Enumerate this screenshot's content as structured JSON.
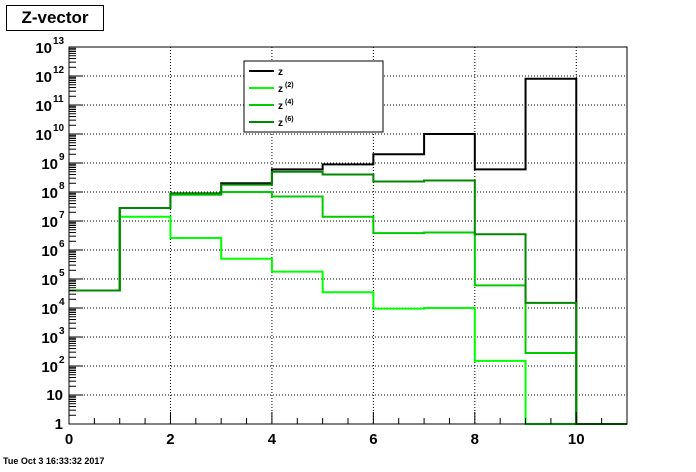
{
  "title": "Z-vector",
  "footer": "Tue Oct  3 16:33:32 2017",
  "chart_data": {
    "type": "line",
    "step_histogram": true,
    "title": "Z-vector",
    "xlabel": "",
    "ylabel": "",
    "xlim": [
      0,
      11
    ],
    "ylim": [
      1,
      10000000000000.0
    ],
    "y_scale": "log",
    "grid": true,
    "bin_edges": [
      0,
      1,
      2,
      3,
      4,
      5,
      6,
      7,
      8,
      9,
      10,
      11
    ],
    "x_ticks": [
      "0",
      "2",
      "4",
      "6",
      "8",
      "10"
    ],
    "y_ticks": [
      {
        "base": "1",
        "exp": ""
      },
      {
        "base": "10",
        "exp": ""
      },
      {
        "base": "10",
        "exp": "2"
      },
      {
        "base": "10",
        "exp": "3"
      },
      {
        "base": "10",
        "exp": "4"
      },
      {
        "base": "10",
        "exp": "5"
      },
      {
        "base": "10",
        "exp": "6"
      },
      {
        "base": "10",
        "exp": "7"
      },
      {
        "base": "10",
        "exp": "8"
      },
      {
        "base": "10",
        "exp": "9"
      },
      {
        "base": "10",
        "exp": "10"
      },
      {
        "base": "10",
        "exp": "11"
      },
      {
        "base": "10",
        "exp": "12"
      },
      {
        "base": "10",
        "exp": "13"
      }
    ],
    "legend_position": "top-center",
    "series": [
      {
        "name": "z",
        "sup": "",
        "color": "#000000",
        "values": [
          40000,
          28000000,
          90000000,
          200000000,
          600000000,
          900000000,
          2000000000,
          10000000000,
          600000000,
          800000000000,
          1,
          1
        ]
      },
      {
        "name": "z",
        "sup": "(2)",
        "color": "#00ff00",
        "values": [
          40000,
          14000000,
          2600000,
          500000,
          180000,
          35000,
          9500,
          10000,
          150,
          1,
          1,
          1
        ]
      },
      {
        "name": "z",
        "sup": "(4)",
        "color": "#00cc00",
        "values": [
          40000,
          28000000,
          80000000,
          100000000,
          70000000,
          14000000,
          3800000,
          4000000,
          60000,
          280,
          1,
          1
        ]
      },
      {
        "name": "z",
        "sup": "(6)",
        "color": "#008800",
        "values": [
          40000,
          28000000,
          90000000,
          180000000,
          500000000,
          400000000,
          230000000,
          250000000,
          3500000,
          15000,
          1,
          1
        ]
      }
    ]
  }
}
